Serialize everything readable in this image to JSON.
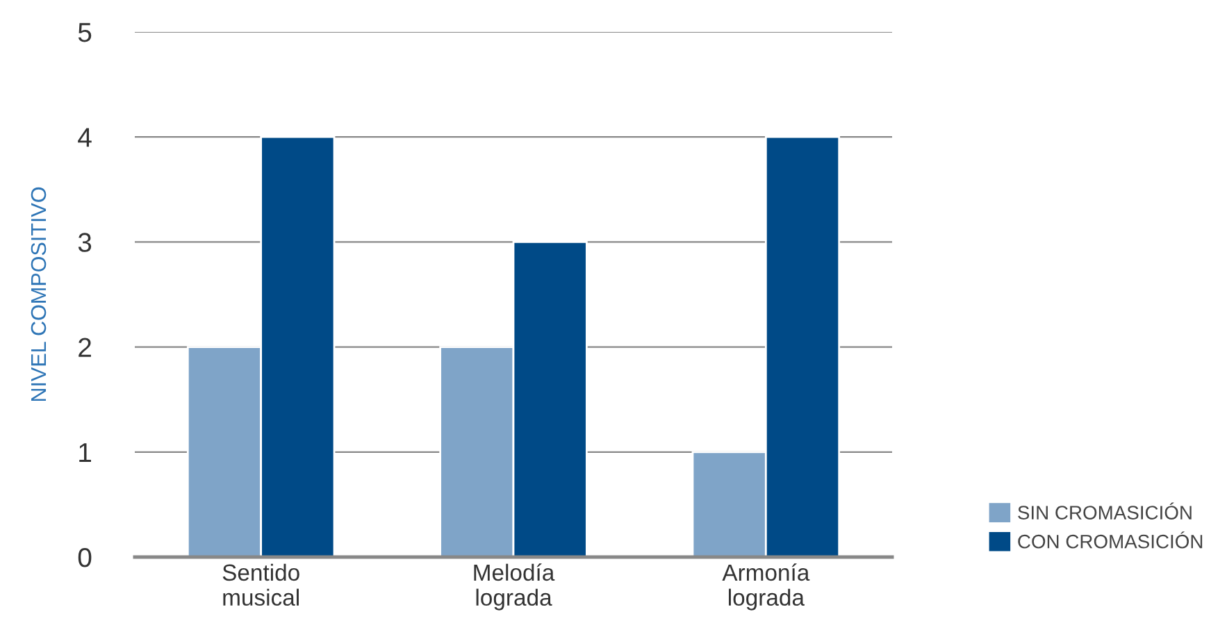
{
  "chart_data": {
    "type": "bar",
    "ylabel": "NIVEL COMPOSITIVO",
    "categories": [
      "Sentido\nmusical",
      "Melodía\nlograda",
      "Armonía\nlograda"
    ],
    "series": [
      {
        "name": "SIN CROMASICIÓN",
        "color": "#7fa4c8",
        "values": [
          2,
          2,
          1
        ]
      },
      {
        "name": "CON CROMASICIÓN",
        "color": "#004a87",
        "values": [
          4,
          3,
          4
        ]
      }
    ],
    "ylim": [
      0,
      5
    ],
    "yticks": [
      0,
      1,
      2,
      3,
      4,
      5
    ],
    "grid": "y",
    "legend": "bottom right"
  }
}
